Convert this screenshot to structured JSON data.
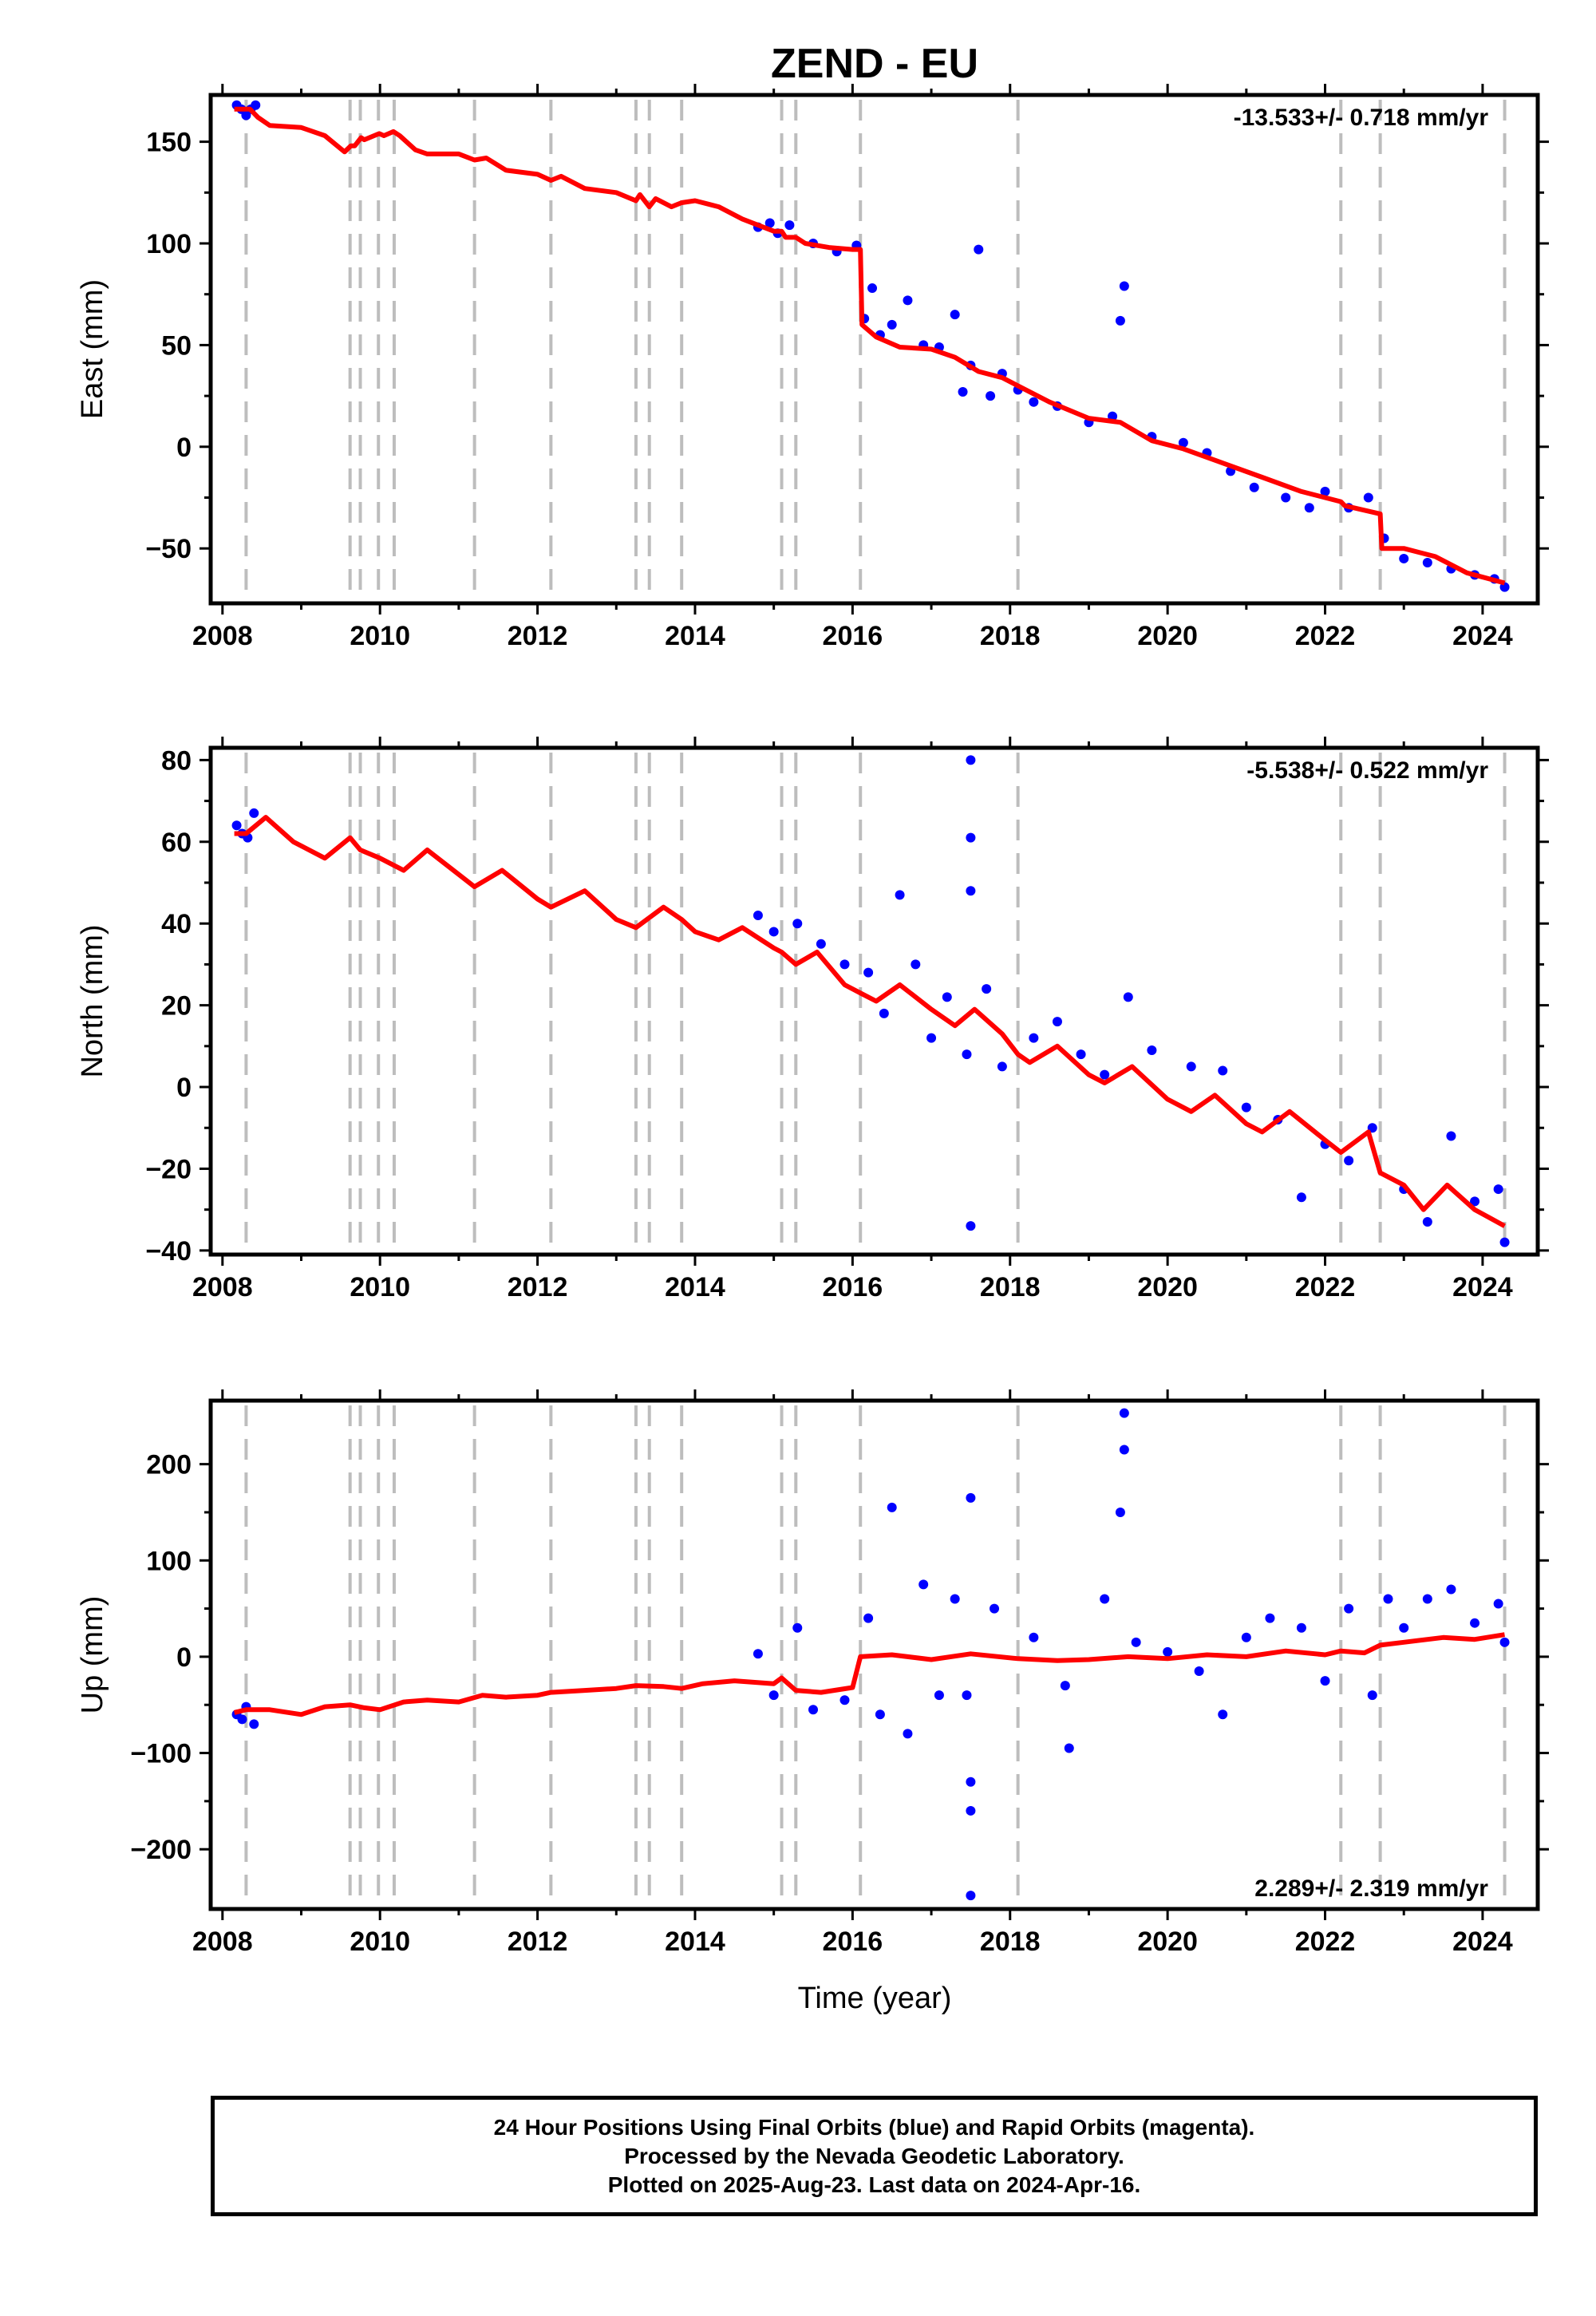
{
  "title": "ZEND - EU",
  "xlabel": "Time (year)",
  "colors": {
    "final_orbits": "#0000ff",
    "model": "#ff0000",
    "step_lines": "#bdbdbd",
    "frame": "#000000"
  },
  "footer": {
    "line1": "24 Hour Positions Using Final Orbits (blue) and Rapid Orbits (magenta).",
    "line2": "Processed by the Nevada Geodetic Laboratory.",
    "line3": "Plotted on 2025-Aug-23. Last data on 2024-Apr-16."
  },
  "chart_data": [
    {
      "type": "scatter",
      "ylabel": "East (mm)",
      "rate": "-13.533+/- 0.718 mm/yr",
      "rate_position": "top-right",
      "xlim": [
        2007.85,
        2024.7
      ],
      "ylim": [
        -77,
        173
      ],
      "x_ticks": [
        2008,
        2010,
        2012,
        2014,
        2016,
        2018,
        2020,
        2022,
        2024
      ],
      "x_tick_labels": [
        "2008",
        "2010",
        "2012",
        "2014",
        "2016",
        "2018",
        "2020",
        "2022",
        "2024"
      ],
      "y_ticks": [
        -50,
        0,
        50,
        100,
        150
      ],
      "y_tick_labels": [
        "−50",
        "0",
        "50",
        "100",
        "150"
      ],
      "step_epochs": [
        2008.3,
        2009.62,
        2009.75,
        2009.98,
        2010.18,
        2011.2,
        2012.17,
        2013.25,
        2013.42,
        2013.83,
        2015.1,
        2015.28,
        2016.1,
        2018.1,
        2022.2,
        2022.7,
        2024.28
      ],
      "model": {
        "x": [
          2008.15,
          2008.35,
          2008.45,
          2008.6,
          2009.0,
          2009.3,
          2009.55,
          2009.63,
          2009.68,
          2009.76,
          2009.8,
          2009.99,
          2010.05,
          2010.17,
          2010.25,
          2010.45,
          2010.6,
          2011.0,
          2011.2,
          2011.35,
          2011.6,
          2012.0,
          2012.17,
          2012.3,
          2012.6,
          2013.0,
          2013.25,
          2013.3,
          2013.42,
          2013.5,
          2013.7,
          2013.83,
          2014.0,
          2014.3,
          2014.6,
          2015.0,
          2015.1,
          2015.15,
          2015.28,
          2015.4,
          2015.7,
          2016.0,
          2016.1,
          2016.12,
          2016.3,
          2016.6,
          2017.0,
          2017.3,
          2017.6,
          2017.9,
          2018.1,
          2018.5,
          2019.0,
          2019.4,
          2019.8,
          2020.2,
          2020.7,
          2021.2,
          2021.7,
          2022.2,
          2022.25,
          2022.7,
          2022.72,
          2023.0,
          2023.4,
          2023.8,
          2024.28
        ],
        "y": [
          166,
          166,
          162,
          158,
          157,
          153,
          145,
          148,
          148,
          152,
          151,
          154,
          153,
          155,
          153,
          146,
          144,
          144,
          141,
          142,
          136,
          134,
          131,
          133,
          127,
          125,
          121,
          124,
          118,
          122,
          118,
          120,
          121,
          118,
          112,
          106,
          106,
          103,
          103,
          100,
          98,
          97,
          97,
          60,
          54,
          49,
          48,
          44,
          37,
          34,
          30,
          22,
          14,
          12,
          3,
          -1,
          -8,
          -15,
          -22,
          -27,
          -29,
          -33,
          -50,
          -50,
          -54,
          -62,
          -67
        ]
      },
      "points": {
        "x": [
          2008.18,
          2008.24,
          2008.3,
          2008.36,
          2008.42,
          2014.8,
          2014.95,
          2015.05,
          2015.2,
          2015.5,
          2015.8,
          2016.05,
          2016.15,
          2016.25,
          2016.35,
          2016.5,
          2016.7,
          2016.9,
          2017.1,
          2017.3,
          2017.4,
          2017.5,
          2017.6,
          2017.75,
          2017.9,
          2018.1,
          2018.3,
          2018.6,
          2019.0,
          2019.3,
          2019.4,
          2019.45,
          2019.8,
          2020.2,
          2020.5,
          2020.8,
          2021.1,
          2021.5,
          2021.8,
          2022.0,
          2022.3,
          2022.55,
          2022.75,
          2023.0,
          2023.3,
          2023.6,
          2023.9,
          2024.15,
          2024.28
        ],
        "y": [
          168,
          166,
          163,
          166,
          168,
          108,
          110,
          105,
          109,
          100,
          96,
          99,
          63,
          78,
          55,
          60,
          72,
          50,
          49,
          65,
          27,
          40,
          97,
          25,
          36,
          28,
          22,
          20,
          12,
          15,
          62,
          79,
          5,
          2,
          -3,
          -12,
          -20,
          -25,
          -30,
          -22,
          -30,
          -25,
          -45,
          -55,
          -57,
          -60,
          -63,
          -65,
          -69
        ]
      }
    },
    {
      "type": "scatter",
      "ylabel": "North (mm)",
      "rate": "-5.538+/- 0.522 mm/yr",
      "rate_position": "top-right",
      "xlim": [
        2007.85,
        2024.7
      ],
      "ylim": [
        -41,
        83
      ],
      "x_ticks": [
        2008,
        2010,
        2012,
        2014,
        2016,
        2018,
        2020,
        2022,
        2024
      ],
      "x_tick_labels": [
        "2008",
        "2010",
        "2012",
        "2014",
        "2016",
        "2018",
        "2020",
        "2022",
        "2024"
      ],
      "y_ticks": [
        -40,
        -20,
        0,
        20,
        40,
        60,
        80
      ],
      "y_tick_labels": [
        "−40",
        "−20",
        "0",
        "20",
        "40",
        "60",
        "80"
      ],
      "step_epochs": [
        2008.3,
        2009.62,
        2009.75,
        2009.98,
        2010.18,
        2011.2,
        2012.17,
        2013.25,
        2013.42,
        2013.83,
        2015.1,
        2015.28,
        2016.1,
        2018.1,
        2022.2,
        2022.7,
        2024.28
      ],
      "model": {
        "x": [
          2008.15,
          2008.3,
          2008.55,
          2008.9,
          2009.3,
          2009.62,
          2009.75,
          2010.0,
          2010.3,
          2010.6,
          2011.0,
          2011.2,
          2011.55,
          2012.0,
          2012.17,
          2012.6,
          2013.0,
          2013.25,
          2013.6,
          2013.83,
          2014.0,
          2014.3,
          2014.6,
          2015.0,
          2015.1,
          2015.28,
          2015.55,
          2015.9,
          2016.1,
          2016.3,
          2016.6,
          2017.0,
          2017.3,
          2017.55,
          2017.9,
          2018.1,
          2018.25,
          2018.6,
          2019.0,
          2019.2,
          2019.55,
          2020.0,
          2020.3,
          2020.6,
          2021.0,
          2021.2,
          2021.55,
          2022.0,
          2022.2,
          2022.55,
          2022.7,
          2023.0,
          2023.25,
          2023.55,
          2023.9,
          2024.28
        ],
        "y": [
          62,
          62,
          66,
          60,
          56,
          61,
          58,
          56,
          53,
          58,
          52,
          49,
          53,
          46,
          44,
          48,
          41,
          39,
          44,
          41,
          38,
          36,
          39,
          34,
          33,
          30,
          33,
          25,
          23,
          21,
          25,
          19,
          15,
          19,
          13,
          8,
          6,
          10,
          3,
          1,
          5,
          -3,
          -6,
          -2,
          -9,
          -11,
          -6,
          -13,
          -16,
          -11,
          -21,
          -24,
          -30,
          -24,
          -30,
          -34
        ]
      },
      "points": {
        "x": [
          2008.18,
          2008.25,
          2008.32,
          2008.4,
          2014.8,
          2015.0,
          2015.3,
          2015.6,
          2015.9,
          2016.2,
          2016.4,
          2016.6,
          2016.8,
          2017.0,
          2017.2,
          2017.45,
          2017.5,
          2017.5,
          2017.5,
          2017.5,
          2017.7,
          2017.9,
          2018.3,
          2018.6,
          2018.9,
          2019.2,
          2019.5,
          2019.8,
          2020.3,
          2020.7,
          2021.0,
          2021.4,
          2021.7,
          2022.0,
          2022.3,
          2022.6,
          2023.0,
          2023.3,
          2023.6,
          2023.9,
          2024.2,
          2024.28
        ],
        "y": [
          64,
          62,
          61,
          67,
          42,
          38,
          40,
          35,
          30,
          28,
          18,
          47,
          30,
          12,
          22,
          8,
          80,
          61,
          48,
          -34,
          24,
          5,
          12,
          16,
          8,
          3,
          22,
          9,
          5,
          4,
          -5,
          -8,
          -27,
          -14,
          -18,
          -10,
          -25,
          -33,
          -12,
          -28,
          -25,
          -38
        ]
      }
    },
    {
      "type": "scatter",
      "ylabel": "Up (mm)",
      "rate": "2.289+/- 2.319 mm/yr",
      "rate_position": "bottom-right",
      "xlim": [
        2007.85,
        2024.7
      ],
      "ylim": [
        -262,
        266
      ],
      "x_ticks": [
        2008,
        2010,
        2012,
        2014,
        2016,
        2018,
        2020,
        2022,
        2024
      ],
      "x_tick_labels": [
        "2008",
        "2010",
        "2012",
        "2014",
        "2016",
        "2018",
        "2020",
        "2022",
        "2024"
      ],
      "y_ticks": [
        -200,
        -100,
        0,
        100,
        200
      ],
      "y_tick_labels": [
        "−200",
        "−100",
        "0",
        "100",
        "200"
      ],
      "step_epochs": [
        2008.3,
        2009.62,
        2009.75,
        2009.98,
        2010.18,
        2011.2,
        2012.17,
        2013.25,
        2013.42,
        2013.83,
        2015.1,
        2015.28,
        2016.1,
        2018.1,
        2022.2,
        2022.7,
        2024.28
      ],
      "model": {
        "x": [
          2008.15,
          2008.3,
          2008.6,
          2009.0,
          2009.3,
          2009.62,
          2009.8,
          2010.0,
          2010.3,
          2010.6,
          2011.0,
          2011.3,
          2011.6,
          2012.0,
          2012.17,
          2012.6,
          2013.0,
          2013.25,
          2013.6,
          2013.83,
          2014.1,
          2014.5,
          2015.0,
          2015.1,
          2015.28,
          2015.6,
          2016.0,
          2016.1,
          2016.5,
          2017.0,
          2017.5,
          2018.1,
          2018.6,
          2019.0,
          2019.5,
          2020.0,
          2020.5,
          2021.0,
          2021.5,
          2022.0,
          2022.2,
          2022.5,
          2022.7,
          2023.0,
          2023.5,
          2023.9,
          2024.28
        ],
        "y": [
          -58,
          -55,
          -55,
          -60,
          -52,
          -50,
          -53,
          -55,
          -47,
          -45,
          -47,
          -40,
          -42,
          -40,
          -37,
          -35,
          -33,
          -30,
          -31,
          -33,
          -28,
          -25,
          -28,
          -22,
          -35,
          -37,
          -32,
          0,
          2,
          -3,
          3,
          -2,
          -4,
          -3,
          0,
          -2,
          2,
          0,
          6,
          2,
          6,
          4,
          12,
          15,
          20,
          18,
          23
        ]
      },
      "points": {
        "x": [
          2008.18,
          2008.25,
          2008.3,
          2008.4,
          2014.8,
          2015.0,
          2015.3,
          2015.5,
          2015.9,
          2016.2,
          2016.35,
          2016.5,
          2016.7,
          2016.9,
          2017.1,
          2017.3,
          2017.45,
          2017.5,
          2017.5,
          2017.5,
          2017.5,
          2017.8,
          2018.3,
          2018.7,
          2018.75,
          2019.2,
          2019.4,
          2019.45,
          2019.45,
          2019.6,
          2020.0,
          2020.4,
          2020.7,
          2021.0,
          2021.3,
          2021.7,
          2022.0,
          2022.3,
          2022.6,
          2022.8,
          2023.0,
          2023.3,
          2023.6,
          2023.9,
          2024.2,
          2024.28
        ],
        "y": [
          -60,
          -65,
          -52,
          -70,
          3,
          -40,
          30,
          -55,
          -45,
          40,
          -60,
          155,
          -80,
          75,
          -40,
          60,
          -40,
          165,
          -130,
          -160,
          -248,
          50,
          20,
          -30,
          -95,
          60,
          150,
          215,
          253,
          15,
          5,
          -15,
          -60,
          20,
          40,
          30,
          -25,
          50,
          -40,
          60,
          30,
          60,
          70,
          35,
          55,
          15
        ]
      }
    }
  ]
}
